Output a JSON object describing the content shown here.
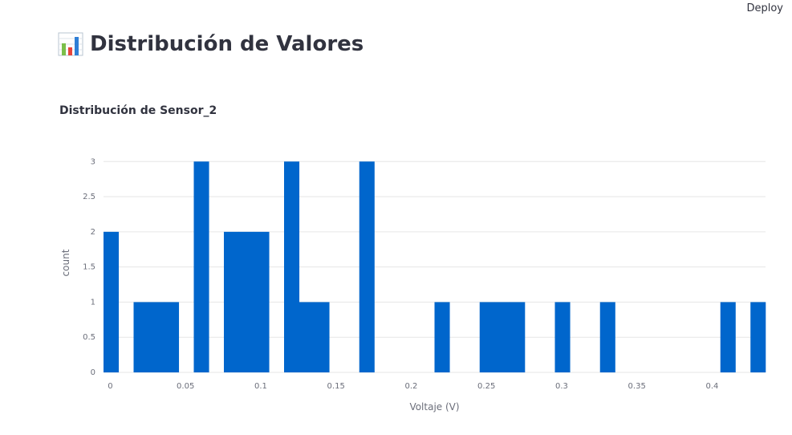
{
  "header": {
    "deploy_label": "Deploy"
  },
  "page": {
    "title": "Distribución de Valores",
    "title_icon": "bar-chart-icon"
  },
  "section": {
    "subtitle": "Distribución de Sensor_2"
  },
  "colors": {
    "bar": "#0066cc",
    "grid": "#e6e6e6",
    "tick_text": "#6b6e7a"
  },
  "chart_data": {
    "type": "bar",
    "xlabel": "Voltaje (V)",
    "ylabel": "count",
    "xlim": [
      -0.0045,
      0.4355
    ],
    "ylim": [
      0,
      3.3
    ],
    "xticks": [
      0,
      0.05,
      0.1,
      0.15,
      0.2,
      0.25,
      0.3,
      0.35,
      0.4
    ],
    "xtick_labels": [
      "0",
      "0.05",
      "0.1",
      "0.15",
      "0.2",
      "0.25",
      "0.3",
      "0.35",
      "0.4"
    ],
    "yticks": [
      0,
      0.5,
      1,
      1.5,
      2,
      2.5,
      3
    ],
    "ytick_labels": [
      "0",
      "0.5",
      "1",
      "1.5",
      "2",
      "2.5",
      "3"
    ],
    "grid": true,
    "bin_width": 0.01,
    "bins": [
      {
        "x0": -0.0045,
        "x1": 0.0055,
        "count": 2
      },
      {
        "x0": 0.0155,
        "x1": 0.0255,
        "count": 1
      },
      {
        "x0": 0.0255,
        "x1": 0.0355,
        "count": 1
      },
      {
        "x0": 0.0355,
        "x1": 0.0455,
        "count": 1
      },
      {
        "x0": 0.0555,
        "x1": 0.0655,
        "count": 3
      },
      {
        "x0": 0.0755,
        "x1": 0.0855,
        "count": 2
      },
      {
        "x0": 0.0855,
        "x1": 0.0955,
        "count": 2
      },
      {
        "x0": 0.0955,
        "x1": 0.1055,
        "count": 2
      },
      {
        "x0": 0.1155,
        "x1": 0.1255,
        "count": 3
      },
      {
        "x0": 0.1255,
        "x1": 0.1355,
        "count": 1
      },
      {
        "x0": 0.1355,
        "x1": 0.1455,
        "count": 1
      },
      {
        "x0": 0.1655,
        "x1": 0.1755,
        "count": 3
      },
      {
        "x0": 0.2155,
        "x1": 0.2255,
        "count": 1
      },
      {
        "x0": 0.2455,
        "x1": 0.2555,
        "count": 1
      },
      {
        "x0": 0.2555,
        "x1": 0.2655,
        "count": 1
      },
      {
        "x0": 0.2655,
        "x1": 0.2755,
        "count": 1
      },
      {
        "x0": 0.2955,
        "x1": 0.3055,
        "count": 1
      },
      {
        "x0": 0.3255,
        "x1": 0.3355,
        "count": 1
      },
      {
        "x0": 0.4055,
        "x1": 0.4155,
        "count": 1
      },
      {
        "x0": 0.4255,
        "x1": 0.4355,
        "count": 1
      }
    ]
  }
}
